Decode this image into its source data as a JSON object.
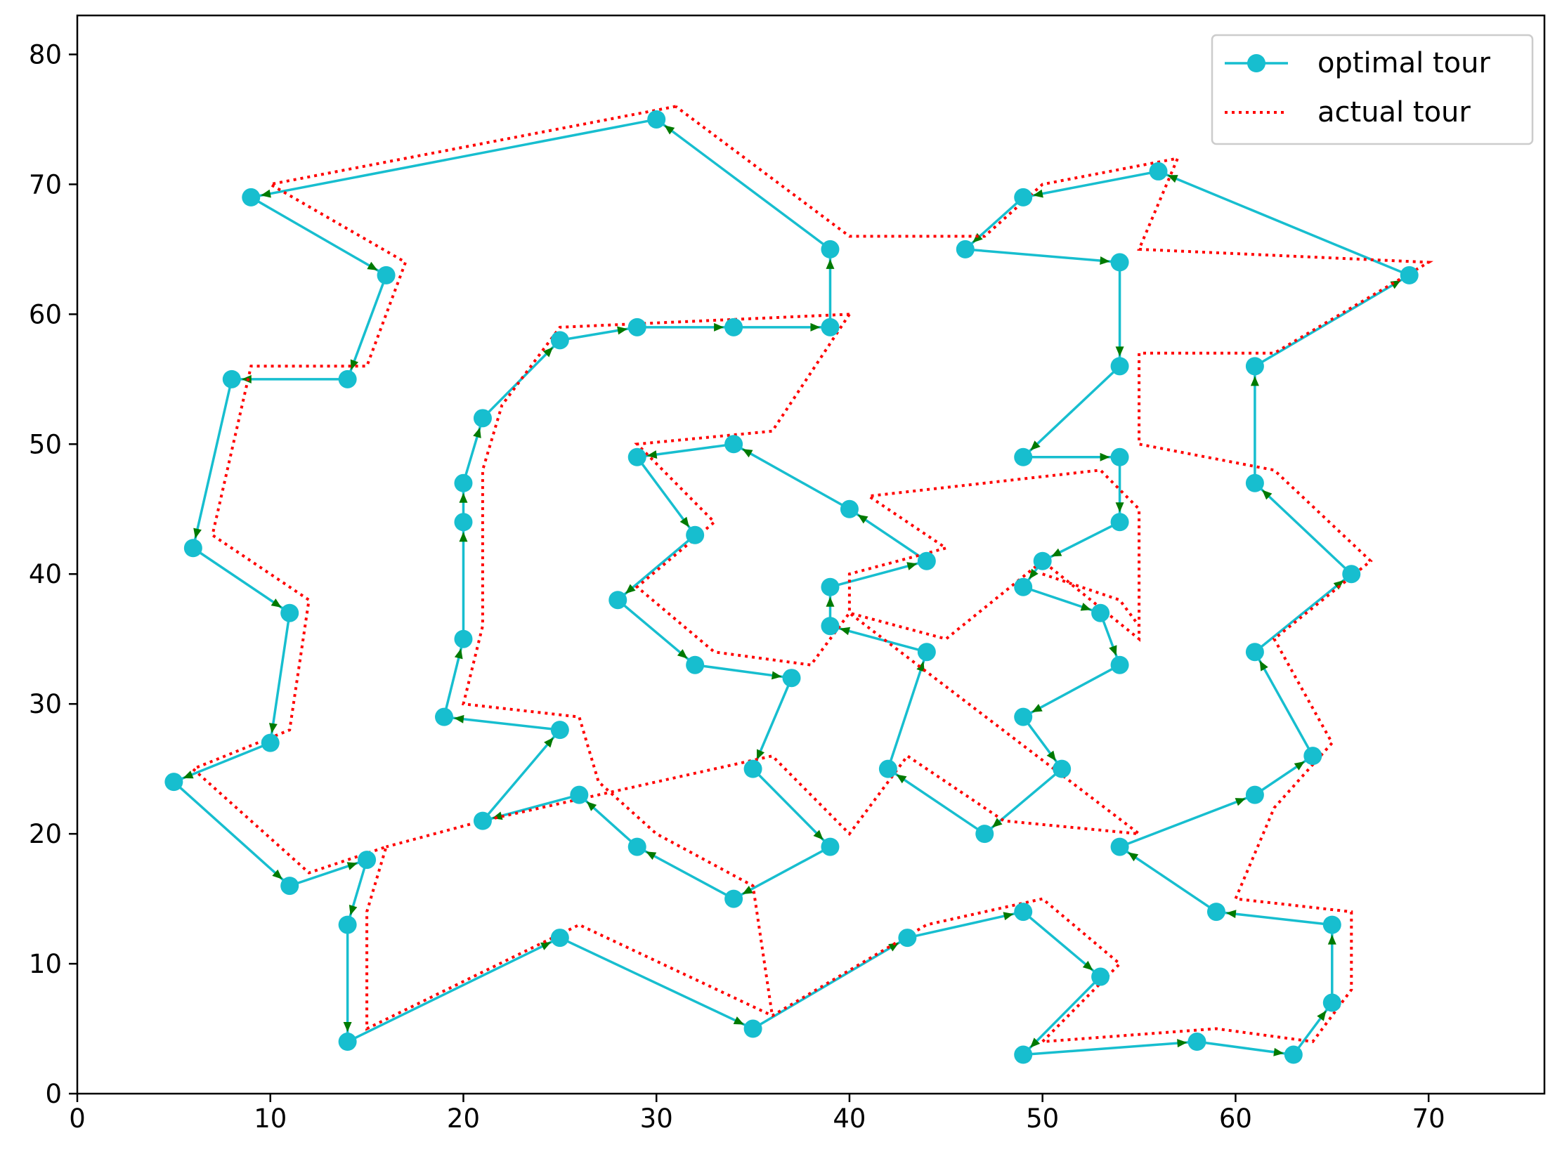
{
  "chart_data": {
    "type": "line",
    "xlim": [
      0,
      76
    ],
    "ylim": [
      0,
      83
    ],
    "xticks": [
      "0",
      "10",
      "20",
      "30",
      "40",
      "50",
      "60",
      "70"
    ],
    "xtick_values": [
      0,
      10,
      20,
      30,
      40,
      50,
      60,
      70
    ],
    "yticks": [
      "0",
      "10",
      "20",
      "30",
      "40",
      "50",
      "60",
      "70",
      "80"
    ],
    "ytick_values": [
      0,
      10,
      20,
      30,
      40,
      50,
      60,
      70,
      80
    ],
    "grid": false,
    "legend_position": "top-right",
    "series": [
      {
        "name": "optimal tour",
        "color": "#17becf",
        "style": "solid-with-markers",
        "arrow_color": "#007a00",
        "points": [
          [
            30,
            75
          ],
          [
            9,
            69
          ],
          [
            16,
            63
          ],
          [
            14,
            55
          ],
          [
            8,
            55
          ],
          [
            6,
            42
          ],
          [
            11,
            37
          ],
          [
            10,
            27
          ],
          [
            5,
            24
          ],
          [
            11,
            16
          ],
          [
            15,
            18
          ],
          [
            14,
            13
          ],
          [
            14,
            4
          ],
          [
            25,
            12
          ],
          [
            35,
            5
          ],
          [
            43,
            12
          ],
          [
            49,
            14
          ],
          [
            53,
            9
          ],
          [
            49,
            3
          ],
          [
            58,
            4
          ],
          [
            63,
            3
          ],
          [
            65,
            7
          ],
          [
            65,
            13
          ],
          [
            59,
            14
          ],
          [
            54,
            19
          ],
          [
            61,
            23
          ],
          [
            64,
            26
          ],
          [
            61,
            34
          ],
          [
            66,
            40
          ],
          [
            61,
            47
          ],
          [
            61,
            56
          ],
          [
            69,
            63
          ],
          [
            56,
            71
          ],
          [
            49,
            69
          ],
          [
            46,
            65
          ],
          [
            54,
            64
          ],
          [
            54,
            56
          ],
          [
            49,
            49
          ],
          [
            54,
            49
          ],
          [
            54,
            44
          ],
          [
            50,
            41
          ],
          [
            49,
            39
          ],
          [
            53,
            37
          ],
          [
            54,
            33
          ],
          [
            49,
            29
          ],
          [
            51,
            25
          ],
          [
            47,
            20
          ],
          [
            42,
            25
          ],
          [
            44,
            34
          ],
          [
            39,
            36
          ],
          [
            39,
            39
          ],
          [
            44,
            41
          ],
          [
            40,
            45
          ],
          [
            34,
            50
          ],
          [
            29,
            49
          ],
          [
            32,
            43
          ],
          [
            28,
            38
          ],
          [
            32,
            33
          ],
          [
            37,
            32
          ],
          [
            35,
            25
          ],
          [
            39,
            19
          ],
          [
            34,
            15
          ],
          [
            29,
            19
          ],
          [
            26,
            23
          ],
          [
            21,
            21
          ],
          [
            25,
            28
          ],
          [
            19,
            29
          ],
          [
            20,
            35
          ],
          [
            20,
            44
          ],
          [
            20,
            47
          ],
          [
            21,
            52
          ],
          [
            25,
            58
          ],
          [
            29,
            59
          ],
          [
            34,
            59
          ],
          [
            39,
            59
          ],
          [
            39,
            65
          ],
          [
            30,
            75
          ]
        ]
      },
      {
        "name": "actual tour",
        "color": "#ff0000",
        "style": "dotted",
        "points": [
          [
            31,
            76
          ],
          [
            10,
            70
          ],
          [
            17,
            64
          ],
          [
            15,
            56
          ],
          [
            9,
            56
          ],
          [
            7,
            43
          ],
          [
            12,
            38
          ],
          [
            11,
            28
          ],
          [
            6,
            25
          ],
          [
            12,
            17
          ],
          [
            16,
            19
          ],
          [
            15,
            14
          ],
          [
            15,
            5
          ],
          [
            26,
            13
          ],
          [
            36,
            6
          ],
          [
            44,
            13
          ],
          [
            50,
            15
          ],
          [
            54,
            10
          ],
          [
            50,
            4
          ],
          [
            59,
            5
          ],
          [
            64,
            4
          ],
          [
            66,
            8
          ],
          [
            66,
            14
          ],
          [
            60,
            15
          ],
          [
            62,
            22
          ],
          [
            65,
            27
          ],
          [
            62,
            35
          ],
          [
            67,
            41
          ],
          [
            62,
            48
          ],
          [
            55,
            50
          ],
          [
            55,
            57
          ],
          [
            62,
            57
          ],
          [
            70,
            64
          ],
          [
            55,
            65
          ],
          [
            57,
            72
          ],
          [
            50,
            70
          ],
          [
            47,
            66
          ],
          [
            40,
            66
          ],
          [
            31,
            76
          ]
        ]
      },
      {
        "name": "actual tour",
        "color": "#ff0000",
        "style": "dotted",
        "points": [
          [
            40,
            60
          ],
          [
            25,
            59
          ],
          [
            22,
            53
          ],
          [
            21,
            48
          ],
          [
            21,
            36
          ],
          [
            20,
            30
          ],
          [
            26,
            29
          ],
          [
            27,
            24
          ],
          [
            30,
            20
          ],
          [
            35,
            16
          ],
          [
            36,
            6
          ]
        ]
      },
      {
        "name": "actual tour",
        "color": "#ff0000",
        "style": "dotted",
        "points": [
          [
            40,
            60
          ],
          [
            36,
            51
          ],
          [
            29,
            50
          ],
          [
            33,
            44
          ],
          [
            29,
            39
          ],
          [
            33,
            34
          ],
          [
            38,
            33
          ],
          [
            40,
            37
          ],
          [
            45,
            35
          ],
          [
            50,
            41
          ],
          [
            55,
            35
          ],
          [
            55,
            45
          ],
          [
            53,
            48
          ],
          [
            41,
            46
          ],
          [
            45,
            42
          ],
          [
            40,
            40
          ],
          [
            40,
            37
          ],
          [
            55,
            20
          ],
          [
            48,
            21
          ],
          [
            43,
            26
          ],
          [
            40,
            20
          ],
          [
            36,
            26
          ],
          [
            21,
            21
          ],
          [
            16,
            19
          ]
        ]
      },
      {
        "name": "actual tour",
        "color": "#ff0000",
        "style": "dotted",
        "points": [
          [
            50,
            40
          ],
          [
            54,
            38
          ],
          [
            55,
            36
          ]
        ]
      }
    ],
    "legend": [
      {
        "label": "optimal tour",
        "color": "#17becf",
        "style": "solid-with-markers"
      },
      {
        "label": "actual tour",
        "color": "#ff0000",
        "style": "dotted"
      }
    ]
  }
}
